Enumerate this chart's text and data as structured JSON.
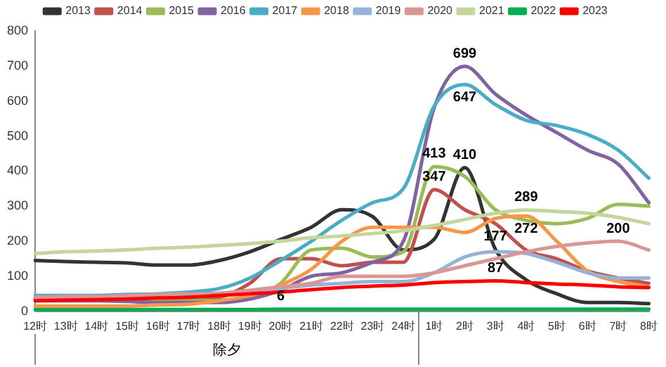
{
  "chart_data": {
    "type": "line",
    "categories": [
      "12时",
      "13时",
      "14时",
      "15时",
      "16时",
      "17时",
      "18时",
      "19时",
      "20时",
      "21时",
      "22时",
      "23时",
      "24时",
      "1时",
      "2时",
      "3时",
      "4时",
      "5时",
      "6时",
      "7时",
      "8时"
    ],
    "series": [
      {
        "name": "2013",
        "color": "#333333",
        "values": [
          145,
          142,
          140,
          138,
          132,
          132,
          145,
          170,
          205,
          240,
          290,
          270,
          175,
          205,
          410,
          177,
          90,
          50,
          25,
          25,
          22
        ]
      },
      {
        "name": "2014",
        "color": "#c0504d",
        "values": [
          35,
          35,
          35,
          35,
          35,
          35,
          40,
          80,
          150,
          150,
          130,
          140,
          140,
          347,
          290,
          250,
          175,
          150,
          115,
          95,
          80
        ]
      },
      {
        "name": "2015",
        "color": "#9bbb59",
        "values": [
          30,
          30,
          30,
          30,
          30,
          30,
          30,
          35,
          80,
          175,
          180,
          155,
          170,
          413,
          385,
          290,
          260,
          250,
          265,
          305,
          300
        ]
      },
      {
        "name": "2016",
        "color": "#8064a2",
        "values": [
          30,
          30,
          30,
          28,
          25,
          25,
          25,
          35,
          60,
          100,
          110,
          140,
          200,
          580,
          699,
          620,
          560,
          510,
          460,
          420,
          310
        ]
      },
      {
        "name": "2017",
        "color": "#4bacc6",
        "values": [
          45,
          45,
          45,
          48,
          50,
          55,
          65,
          95,
          145,
          200,
          260,
          310,
          350,
          585,
          647,
          590,
          545,
          530,
          505,
          460,
          380
        ]
      },
      {
        "name": "2018",
        "color": "#f79646",
        "values": [
          15,
          15,
          15,
          15,
          18,
          20,
          30,
          45,
          75,
          120,
          200,
          240,
          240,
          240,
          225,
          265,
          272,
          200,
          115,
          85,
          70
        ]
      },
      {
        "name": "2019",
        "color": "#95b3d7",
        "values": [
          40,
          40,
          40,
          40,
          40,
          40,
          45,
          55,
          65,
          75,
          80,
          85,
          85,
          110,
          155,
          170,
          165,
          140,
          110,
          95,
          95
        ]
      },
      {
        "name": "2020",
        "color": "#d99694",
        "values": [
          40,
          42,
          42,
          45,
          48,
          50,
          52,
          60,
          70,
          80,
          100,
          100,
          100,
          110,
          130,
          150,
          170,
          185,
          195,
          200,
          175
        ]
      },
      {
        "name": "2021",
        "color": "#c3d69b",
        "values": [
          165,
          170,
          172,
          175,
          180,
          183,
          188,
          193,
          200,
          210,
          215,
          222,
          230,
          245,
          262,
          280,
          289,
          285,
          280,
          268,
          250
        ]
      },
      {
        "name": "2022",
        "color": "#00b050",
        "values": [
          5,
          5,
          5,
          5,
          5,
          5,
          5,
          5,
          6,
          6,
          6,
          6,
          6,
          6,
          6,
          6,
          6,
          6,
          6,
          6,
          6
        ]
      },
      {
        "name": "2023",
        "color": "#ff0000",
        "values": [
          30,
          32,
          33,
          35,
          38,
          40,
          45,
          50,
          55,
          62,
          68,
          72,
          75,
          82,
          85,
          87,
          82,
          78,
          75,
          70,
          68
        ]
      }
    ],
    "ylim": [
      0,
      800
    ],
    "yticks": [
      0,
      100,
      200,
      300,
      400,
      500,
      600,
      700,
      800
    ],
    "grid": false,
    "legend": "top",
    "marker": "none",
    "line_style": "solid",
    "annotations": [
      {
        "text": "699",
        "x": "2时",
        "y": 699
      },
      {
        "text": "647",
        "x": "2时",
        "y": 647
      },
      {
        "text": "413",
        "x": "1时",
        "y": 413
      },
      {
        "text": "347",
        "x": "1时",
        "y": 347
      },
      {
        "text": "410",
        "x": "2时",
        "y": 410
      },
      {
        "text": "177",
        "x": "3时",
        "y": 177
      },
      {
        "text": "289",
        "x": "4时",
        "y": 289
      },
      {
        "text": "272",
        "x": "4时",
        "y": 272
      },
      {
        "text": "200",
        "x": "7时",
        "y": 200
      },
      {
        "text": "87",
        "x": "3时",
        "y": 87
      },
      {
        "text": "6",
        "x": "20时",
        "y": 6
      },
      "除夕"
    ]
  }
}
